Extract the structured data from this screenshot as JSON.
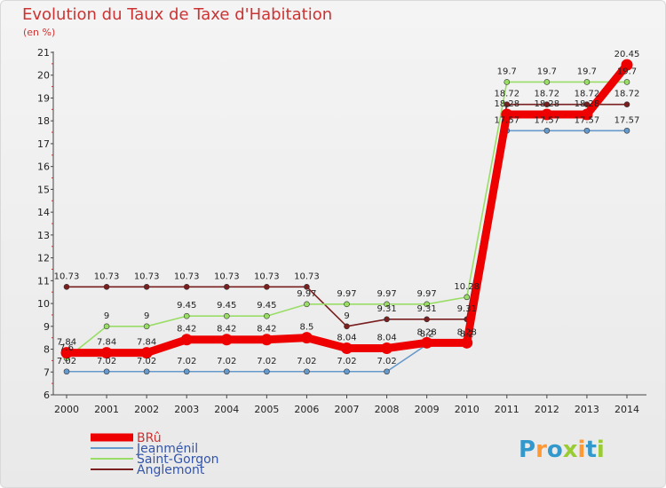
{
  "title": "Evolution du Taux de Taxe d'Habitation",
  "subtitle": "(en %)",
  "brand": "Proxiti",
  "chart_data": {
    "type": "line",
    "title": "Evolution du Taux de Taxe d'Habitation",
    "ylabel": "(en %)",
    "xlabel": "",
    "x": [
      2000,
      2001,
      2002,
      2003,
      2004,
      2005,
      2006,
      2007,
      2008,
      2009,
      2010,
      2011,
      2012,
      2013,
      2014
    ],
    "yticks": [
      6,
      7,
      8,
      9,
      10,
      11,
      12,
      13,
      14,
      15,
      16,
      17,
      18,
      19,
      20,
      21
    ],
    "ylim": [
      6,
      21
    ],
    "grid": false,
    "legend_position": "bottom-left",
    "series": [
      {
        "name": "Anglemont",
        "color": "#7a1f1f",
        "values": [
          10.73,
          10.73,
          10.73,
          10.73,
          10.73,
          10.73,
          10.73,
          9,
          9.31,
          9.31,
          9.31,
          18.72,
          18.72,
          18.72,
          18.72
        ],
        "labels": [
          "10.73",
          "10.73",
          "10.73",
          "10.73",
          "10.73",
          "10.73",
          "10.73",
          "9",
          "9.31",
          "9.31",
          "9.31",
          "18.72",
          "18.72",
          "18.72",
          "18.72"
        ]
      },
      {
        "name": "Saint-Gorgon",
        "color": "#99dd66",
        "values": [
          7.6,
          9,
          9,
          9.45,
          9.45,
          9.45,
          9.97,
          9.97,
          9.97,
          9.97,
          10.28,
          19.7,
          19.7,
          19.7,
          19.7
        ],
        "labels": [
          "7.6",
          "9",
          "9",
          "9.45",
          "9.45",
          "9.45",
          "9.97",
          "9.97",
          "9.97",
          "9.97",
          "10.28",
          "19.7",
          "19.7",
          "19.7",
          "19.7"
        ]
      },
      {
        "name": "Jeanménil",
        "color": "#6699cc",
        "values": [
          7.02,
          7.02,
          7.02,
          7.02,
          7.02,
          7.02,
          7.02,
          7.02,
          7.02,
          8.2,
          8.2,
          17.57,
          17.57,
          17.57,
          17.57
        ],
        "labels": [
          "7.02",
          "7.02",
          "7.02",
          "7.02",
          "7.02",
          "7.02",
          "7.02",
          "7.02",
          "7.02",
          "8.2",
          "8.2",
          "17.57",
          "17.57",
          "17.57",
          "17.57"
        ]
      },
      {
        "name": "BRû",
        "color": "#ee0000",
        "values": [
          7.84,
          7.84,
          7.84,
          8.42,
          8.42,
          8.42,
          8.5,
          8.04,
          8.04,
          8.28,
          8.28,
          18.28,
          18.28,
          18.28,
          20.45
        ],
        "labels": [
          "7.84",
          "7.84",
          "7.84",
          "8.42",
          "8.42",
          "8.42",
          "8.5",
          "8.04",
          "8.04",
          "8.28",
          "8.28",
          "18.28",
          "18.28",
          "18.28",
          "20.45"
        ]
      }
    ],
    "legend_order": [
      "BRû",
      "Jeanménil",
      "Saint-Gorgon",
      "Anglemont"
    ]
  }
}
